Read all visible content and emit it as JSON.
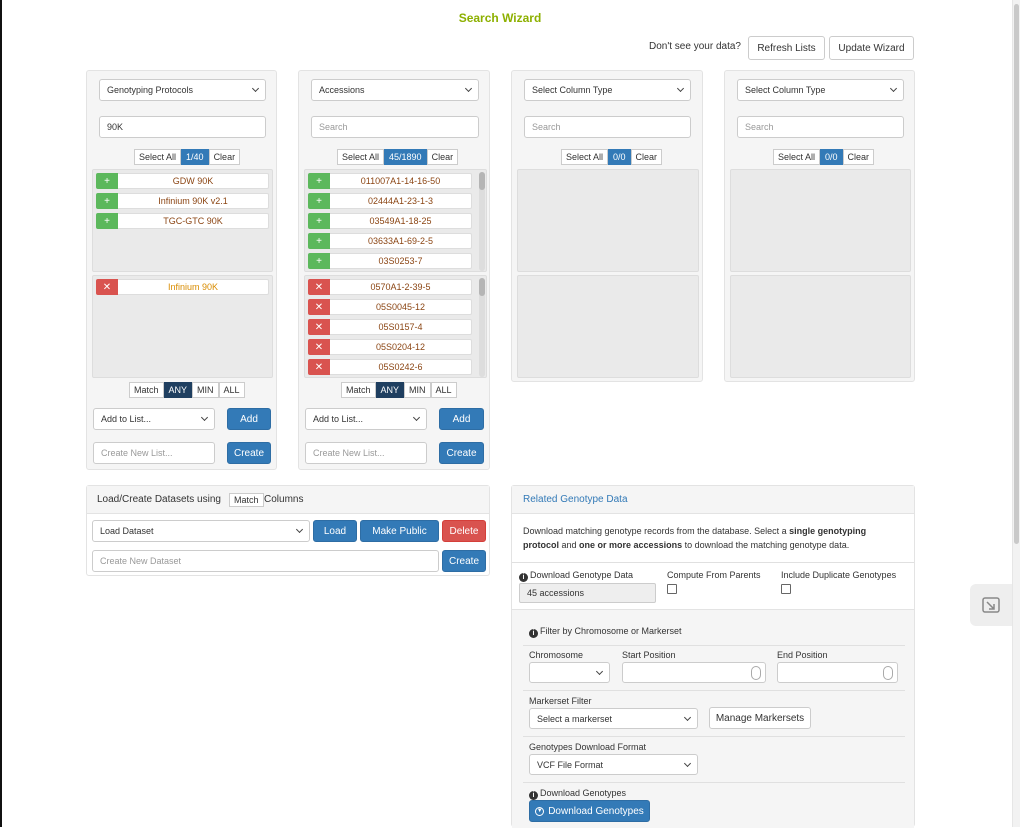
{
  "title": "Search Wizard",
  "header": {
    "prompt": "Don't see your data?",
    "refresh_label": "Refresh Lists",
    "update_label": "Update Wizard"
  },
  "columns": [
    {
      "type_label": "Genotyping Protocols",
      "search_value": "90K",
      "search_placeholder": "Search",
      "select_all": "Select All",
      "count": "1/40",
      "clear": "Clear",
      "available": [
        "GDW 90K",
        "Infinium 90K v2.1",
        "TGC-GTC 90K"
      ],
      "selected": [
        "Infinium 90K"
      ],
      "match_label": "Match",
      "modes": [
        "ANY",
        "MIN",
        "ALL"
      ],
      "active_mode": "ANY",
      "add_to_list": "Add to List...",
      "add_label": "Add",
      "create_placeholder": "Create New List...",
      "create_label": "Create"
    },
    {
      "type_label": "Accessions",
      "search_value": "",
      "search_placeholder": "Search",
      "select_all": "Select All",
      "count": "45/1890",
      "clear": "Clear",
      "available": [
        "011007A1-14-16-50",
        "02444A1-23-1-3",
        "03549A1-18-25",
        "03633A1-69-2-5",
        "03S0253-7"
      ],
      "selected": [
        "0570A1-2-39-5",
        "05S0045-12",
        "05S0157-4",
        "05S0204-12",
        "05S0242-6"
      ],
      "match_label": "Match",
      "modes": [
        "ANY",
        "MIN",
        "ALL"
      ],
      "active_mode": "ANY",
      "add_to_list": "Add to List...",
      "add_label": "Add",
      "create_placeholder": "Create New List...",
      "create_label": "Create"
    },
    {
      "type_label": "Select Column Type",
      "search_placeholder": "Search",
      "select_all": "Select All",
      "count": "0/0",
      "clear": "Clear"
    },
    {
      "type_label": "Select Column Type",
      "search_placeholder": "Search",
      "select_all": "Select All",
      "count": "0/0",
      "clear": "Clear"
    }
  ],
  "datasets": {
    "heading_pre": "Load/Create Datasets using",
    "match_label": "Match",
    "heading_post": "Columns",
    "load_select": "Load Dataset",
    "load_label": "Load",
    "make_public_label": "Make Public",
    "delete_label": "Delete",
    "create_placeholder": "Create New Dataset",
    "create_label": "Create"
  },
  "genotype": {
    "heading": "Related Genotype Data",
    "desc_1": "Download matching genotype records from the database. Select a ",
    "desc_bold_1": "single genotyping",
    "desc_bold_2": "protocol",
    "desc_2": " and ",
    "desc_bold_3": "one or more accessions",
    "desc_3": " to download the matching genotype data.",
    "download_data_label": "Download Genotype Data",
    "accessions_value": "45 accessions",
    "compute_label": "Compute From Parents",
    "duplicates_label": "Include Duplicate Genotypes",
    "filter_label": "Filter by Chromosome or Markerset",
    "chromosome_label": "Chromosome",
    "start_label": "Start Position",
    "end_label": "End Position",
    "markerset_label": "Markerset Filter",
    "markerset_select": "Select a markerset",
    "manage_label": "Manage Markersets",
    "format_label": "Genotypes Download Format",
    "format_select": "VCF File Format",
    "download_genotypes_label": "Download Genotypes",
    "download_button": "Download Genotypes"
  },
  "colors": {
    "title": "#8db000",
    "primary": "#337ab7",
    "add": "#5cb85c",
    "remove": "#d9534f",
    "item_text": "#8b4513"
  }
}
